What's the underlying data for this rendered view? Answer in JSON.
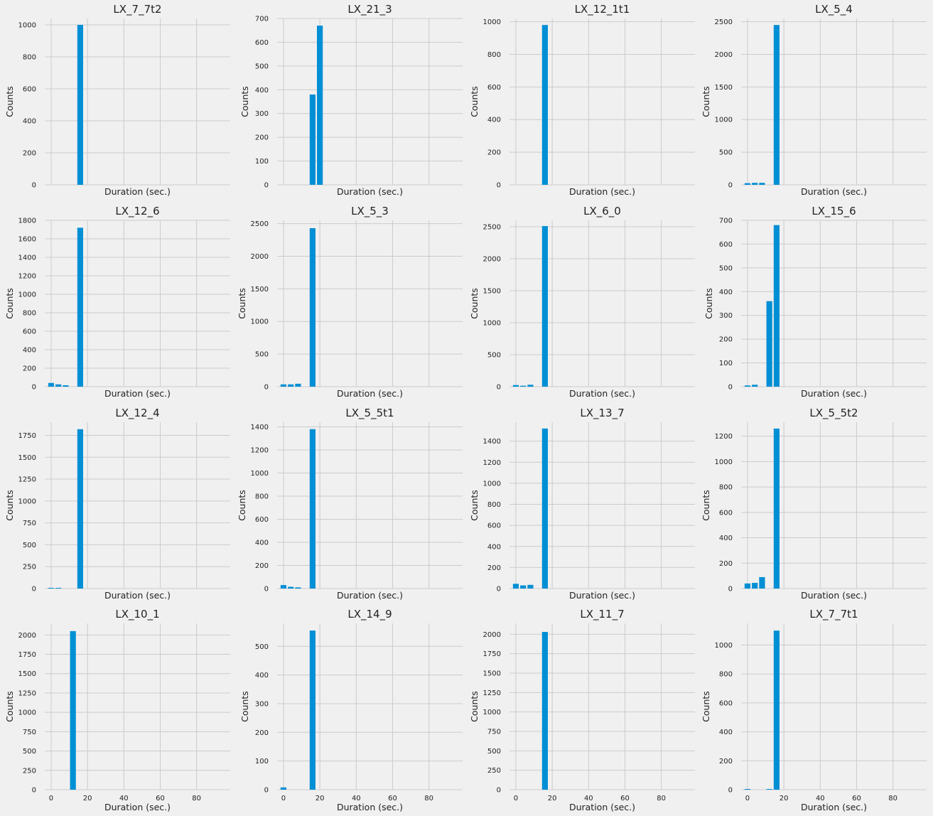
{
  "figure": {
    "background": "#f0f0f0",
    "bar_color": "#008fd5",
    "grid_color": "#cbcbcb",
    "shared_x_ticks": [
      0,
      20,
      40,
      60,
      80
    ]
  },
  "chart_data": [
    {
      "type": "bar",
      "title": "LX_7_7t2",
      "xlabel": "Duration (sec.)",
      "ylabel": "Counts",
      "x": [
        16
      ],
      "values": [
        1000
      ],
      "bar_width": 3.2,
      "xlim": [
        -3.5,
        98.5
      ],
      "ylim": [
        0,
        1040
      ],
      "yticks": [
        0,
        200,
        400,
        600,
        800,
        1000
      ],
      "show_xticks": false
    },
    {
      "type": "bar",
      "title": "LX_21_3",
      "xlabel": "Duration (sec.)",
      "ylabel": "Counts",
      "x": [
        16,
        20
      ],
      "values": [
        380,
        670
      ],
      "bar_width": 3.2,
      "xlim": [
        -3.5,
        98.5
      ],
      "ylim": [
        0,
        700
      ],
      "yticks": [
        0,
        100,
        200,
        300,
        400,
        500,
        600,
        700
      ],
      "show_xticks": false
    },
    {
      "type": "bar",
      "title": "LX_12_1t1",
      "xlabel": "Duration (sec.)",
      "ylabel": "Counts",
      "x": [
        16
      ],
      "values": [
        980
      ],
      "bar_width": 3.2,
      "xlim": [
        -3.5,
        98.5
      ],
      "ylim": [
        0,
        1020
      ],
      "yticks": [
        0,
        200,
        400,
        600,
        800,
        1000
      ],
      "show_xticks": false
    },
    {
      "type": "bar",
      "title": "LX_5_4",
      "xlabel": "Duration (sec.)",
      "ylabel": "Counts",
      "x": [
        0,
        4,
        8,
        16
      ],
      "values": [
        25,
        30,
        30,
        2450
      ],
      "bar_width": 3.2,
      "xlim": [
        -3.5,
        98.5
      ],
      "ylim": [
        0,
        2550
      ],
      "yticks": [
        0,
        500,
        1000,
        1500,
        2000,
        2500
      ],
      "show_xticks": false
    },
    {
      "type": "bar",
      "title": "LX_12_6",
      "xlabel": "Duration (sec.)",
      "ylabel": "Counts",
      "x": [
        0,
        4,
        8,
        16
      ],
      "values": [
        40,
        25,
        15,
        1720
      ],
      "bar_width": 3.2,
      "xlim": [
        -3.5,
        98.5
      ],
      "ylim": [
        0,
        1800
      ],
      "yticks": [
        0,
        200,
        400,
        600,
        800,
        1000,
        1200,
        1400,
        1600,
        1800
      ],
      "show_xticks": false
    },
    {
      "type": "bar",
      "title": "LX_5_3",
      "xlabel": "Duration (sec.)",
      "ylabel": "Counts",
      "x": [
        0,
        4,
        8,
        16
      ],
      "values": [
        35,
        35,
        45,
        2430
      ],
      "bar_width": 3.2,
      "xlim": [
        -3.5,
        98.5
      ],
      "ylim": [
        0,
        2550
      ],
      "yticks": [
        0,
        500,
        1000,
        1500,
        2000,
        2500
      ],
      "show_xticks": false
    },
    {
      "type": "bar",
      "title": "LX_6_0",
      "xlabel": "Duration (sec.)",
      "ylabel": "Counts",
      "x": [
        0,
        4,
        8,
        16
      ],
      "values": [
        25,
        15,
        30,
        2510
      ],
      "bar_width": 3.2,
      "xlim": [
        -3.5,
        98.5
      ],
      "ylim": [
        0,
        2600
      ],
      "yticks": [
        0,
        500,
        1000,
        1500,
        2000,
        2500
      ],
      "show_xticks": false
    },
    {
      "type": "bar",
      "title": "LX_15_6",
      "xlabel": "Duration (sec.)",
      "ylabel": "Counts",
      "x": [
        0,
        4,
        12,
        16
      ],
      "values": [
        5,
        8,
        360,
        680
      ],
      "bar_width": 3.2,
      "xlim": [
        -3.5,
        98.5
      ],
      "ylim": [
        0,
        700
      ],
      "yticks": [
        0,
        100,
        200,
        300,
        400,
        500,
        600,
        700
      ],
      "show_xticks": false
    },
    {
      "type": "bar",
      "title": "LX_12_4",
      "xlabel": "Duration (sec.)",
      "ylabel": "Counts",
      "x": [
        0,
        4,
        16
      ],
      "values": [
        8,
        8,
        1820
      ],
      "bar_width": 3.2,
      "xlim": [
        -3.5,
        98.5
      ],
      "ylim": [
        0,
        1900
      ],
      "yticks": [
        0,
        250,
        500,
        750,
        1000,
        1250,
        1500,
        1750
      ],
      "show_xticks": false
    },
    {
      "type": "bar",
      "title": "LX_5_5t1",
      "xlabel": "Duration (sec.)",
      "ylabel": "Counts",
      "x": [
        0,
        4,
        8,
        16
      ],
      "values": [
        30,
        15,
        10,
        1380
      ],
      "bar_width": 3.2,
      "xlim": [
        -3.5,
        98.5
      ],
      "ylim": [
        0,
        1440
      ],
      "yticks": [
        0,
        200,
        400,
        600,
        800,
        1000,
        1200,
        1400
      ],
      "show_xticks": false
    },
    {
      "type": "bar",
      "title": "LX_13_7",
      "xlabel": "Duration (sec.)",
      "ylabel": "Counts",
      "x": [
        0,
        4,
        8,
        16
      ],
      "values": [
        45,
        30,
        35,
        1520
      ],
      "bar_width": 3.2,
      "xlim": [
        -3.5,
        98.5
      ],
      "ylim": [
        0,
        1580
      ],
      "yticks": [
        0,
        200,
        400,
        600,
        800,
        1000,
        1200,
        1400
      ],
      "show_xticks": false
    },
    {
      "type": "bar",
      "title": "LX_5_5t2",
      "xlabel": "Duration (sec.)",
      "ylabel": "Counts",
      "x": [
        0,
        4,
        8,
        16
      ],
      "values": [
        40,
        45,
        90,
        1260
      ],
      "bar_width": 3.2,
      "xlim": [
        -3.5,
        98.5
      ],
      "ylim": [
        0,
        1310
      ],
      "yticks": [
        0,
        200,
        400,
        600,
        800,
        1000,
        1200
      ],
      "show_xticks": false
    },
    {
      "type": "bar",
      "title": "LX_10_1",
      "xlabel": "Duration (sec.)",
      "ylabel": "Counts",
      "x": [
        12
      ],
      "values": [
        2050
      ],
      "bar_width": 3.2,
      "xlim": [
        -3.5,
        98.5
      ],
      "ylim": [
        0,
        2150
      ],
      "yticks": [
        0,
        250,
        500,
        750,
        1000,
        1250,
        1500,
        1750,
        2000
      ],
      "xticks": [
        0,
        20,
        40,
        60,
        80
      ],
      "show_xticks": true
    },
    {
      "type": "bar",
      "title": "LX_14_9",
      "xlabel": "Duration (sec.)",
      "ylabel": "Counts",
      "x": [
        0,
        16
      ],
      "values": [
        8,
        555
      ],
      "bar_width": 3.2,
      "xlim": [
        -3.5,
        98.5
      ],
      "ylim": [
        0,
        580
      ],
      "yticks": [
        0,
        100,
        200,
        300,
        400,
        500
      ],
      "xticks": [
        0,
        20,
        40,
        60,
        80
      ],
      "show_xticks": true
    },
    {
      "type": "bar",
      "title": "LX_11_7",
      "xlabel": "Duration (sec.)",
      "ylabel": "Counts",
      "x": [
        16
      ],
      "values": [
        2030
      ],
      "bar_width": 3.2,
      "xlim": [
        -3.5,
        98.5
      ],
      "ylim": [
        0,
        2140
      ],
      "yticks": [
        0,
        250,
        500,
        750,
        1000,
        1250,
        1500,
        1750,
        2000
      ],
      "xticks": [
        0,
        20,
        40,
        60,
        80
      ],
      "show_xticks": true
    },
    {
      "type": "bar",
      "title": "LX_7_7t1",
      "xlabel": "Duration (sec.)",
      "ylabel": "Counts",
      "x": [
        0,
        12,
        16
      ],
      "values": [
        5,
        5,
        1100
      ],
      "bar_width": 3.2,
      "xlim": [
        -3.5,
        98.5
      ],
      "ylim": [
        0,
        1150
      ],
      "yticks": [
        0,
        200,
        400,
        600,
        800,
        1000
      ],
      "xticks": [
        0,
        20,
        40,
        60,
        80
      ],
      "show_xticks": true
    }
  ]
}
